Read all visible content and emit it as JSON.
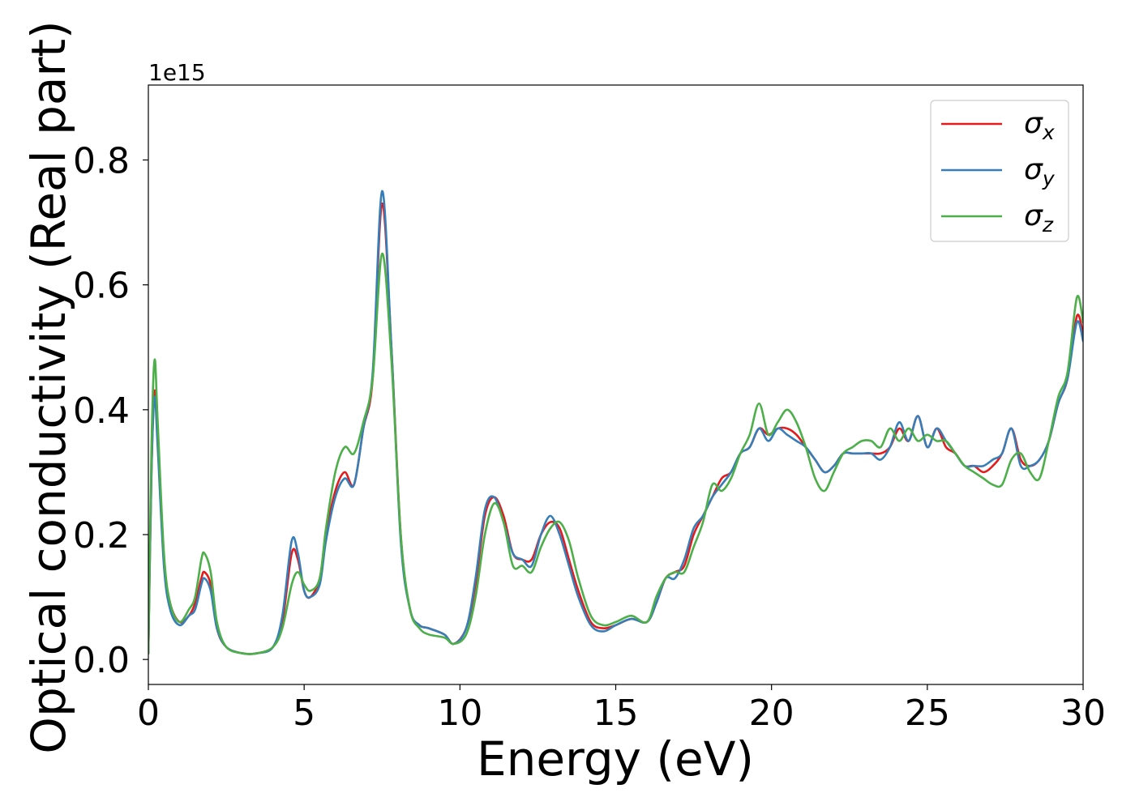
{
  "chart_data": {
    "type": "line",
    "title": "",
    "xlabel": "Energy (eV)",
    "ylabel": "Optical conductivity (Real part)",
    "y_offset_text": "1e15",
    "xlim": [
      0,
      30
    ],
    "ylim": [
      -0.04,
      0.92
    ],
    "xticks": [
      0,
      5,
      10,
      15,
      20,
      25,
      30
    ],
    "xtick_labels": [
      "0",
      "5",
      "10",
      "15",
      "20",
      "25",
      "30"
    ],
    "yticks": [
      0.0,
      0.2,
      0.4,
      0.6,
      0.8
    ],
    "ytick_labels": [
      "0.0",
      "0.2",
      "0.4",
      "0.6",
      "0.8"
    ],
    "grid": false,
    "legend_position": "top-right",
    "series": [
      {
        "name": "σx",
        "symbol": "σ",
        "subscript": "x",
        "color": "#e41a1c",
        "x": [
          0.0,
          0.1,
          0.2,
          0.3,
          0.5,
          0.7,
          1.0,
          1.3,
          1.5,
          1.7,
          1.8,
          2.0,
          2.2,
          2.5,
          3.0,
          3.5,
          4.0,
          4.3,
          4.6,
          4.8,
          5.0,
          5.2,
          5.5,
          5.7,
          6.0,
          6.3,
          6.6,
          6.9,
          7.2,
          7.5,
          7.8,
          8.1,
          8.4,
          8.7,
          9.0,
          9.5,
          9.8,
          10.2,
          10.5,
          10.8,
          11.1,
          11.4,
          11.7,
          12.0,
          12.3,
          12.6,
          12.9,
          13.2,
          13.5,
          13.8,
          14.2,
          14.6,
          15.0,
          15.5,
          16.0,
          16.3,
          16.6,
          16.9,
          17.2,
          17.5,
          17.8,
          18.1,
          18.4,
          18.7,
          19.0,
          19.3,
          19.6,
          19.9,
          20.2,
          20.5,
          20.8,
          21.1,
          21.4,
          21.7,
          22.0,
          22.3,
          22.6,
          22.9,
          23.2,
          23.5,
          23.8,
          24.1,
          24.4,
          24.7,
          25.0,
          25.3,
          25.6,
          25.9,
          26.2,
          26.5,
          26.8,
          27.1,
          27.4,
          27.7,
          28.0,
          28.3,
          28.6,
          28.9,
          29.2,
          29.5,
          29.8,
          30.0
        ],
        "y": [
          0.01,
          0.3,
          0.43,
          0.35,
          0.16,
          0.09,
          0.06,
          0.07,
          0.09,
          0.13,
          0.14,
          0.12,
          0.05,
          0.02,
          0.01,
          0.01,
          0.02,
          0.06,
          0.17,
          0.16,
          0.11,
          0.1,
          0.13,
          0.2,
          0.27,
          0.3,
          0.28,
          0.37,
          0.45,
          0.73,
          0.5,
          0.2,
          0.08,
          0.055,
          0.05,
          0.04,
          0.025,
          0.05,
          0.12,
          0.23,
          0.26,
          0.23,
          0.17,
          0.16,
          0.16,
          0.2,
          0.22,
          0.21,
          0.16,
          0.11,
          0.06,
          0.05,
          0.055,
          0.065,
          0.06,
          0.09,
          0.13,
          0.14,
          0.15,
          0.2,
          0.23,
          0.26,
          0.29,
          0.3,
          0.33,
          0.34,
          0.37,
          0.36,
          0.37,
          0.37,
          0.36,
          0.34,
          0.32,
          0.3,
          0.31,
          0.33,
          0.33,
          0.33,
          0.33,
          0.33,
          0.34,
          0.37,
          0.35,
          0.39,
          0.34,
          0.37,
          0.34,
          0.33,
          0.31,
          0.31,
          0.3,
          0.31,
          0.33,
          0.37,
          0.32,
          0.31,
          0.32,
          0.35,
          0.41,
          0.45,
          0.55,
          0.52
        ]
      },
      {
        "name": "σy",
        "symbol": "σ",
        "subscript": "y",
        "color": "#377eb8",
        "x": [
          0.0,
          0.1,
          0.2,
          0.3,
          0.5,
          0.7,
          1.0,
          1.3,
          1.5,
          1.7,
          1.8,
          2.0,
          2.2,
          2.5,
          3.0,
          3.5,
          4.0,
          4.3,
          4.6,
          4.8,
          5.0,
          5.2,
          5.5,
          5.7,
          6.0,
          6.3,
          6.6,
          6.9,
          7.2,
          7.5,
          7.8,
          8.1,
          8.4,
          8.7,
          9.0,
          9.5,
          9.8,
          10.2,
          10.5,
          10.8,
          11.1,
          11.4,
          11.7,
          12.0,
          12.3,
          12.6,
          12.9,
          13.2,
          13.5,
          13.8,
          14.2,
          14.6,
          15.0,
          15.5,
          16.0,
          16.3,
          16.6,
          16.9,
          17.2,
          17.5,
          17.8,
          18.1,
          18.4,
          18.7,
          19.0,
          19.3,
          19.6,
          19.9,
          20.2,
          20.5,
          20.8,
          21.1,
          21.4,
          21.7,
          22.0,
          22.3,
          22.6,
          22.9,
          23.2,
          23.5,
          23.8,
          24.1,
          24.4,
          24.7,
          25.0,
          25.3,
          25.6,
          25.9,
          26.2,
          26.5,
          26.8,
          27.1,
          27.4,
          27.7,
          28.0,
          28.3,
          28.6,
          28.9,
          29.2,
          29.5,
          29.8,
          30.0
        ],
        "y": [
          0.01,
          0.3,
          0.42,
          0.34,
          0.15,
          0.08,
          0.055,
          0.07,
          0.08,
          0.12,
          0.13,
          0.11,
          0.05,
          0.02,
          0.01,
          0.01,
          0.02,
          0.07,
          0.19,
          0.17,
          0.11,
          0.1,
          0.12,
          0.19,
          0.26,
          0.29,
          0.28,
          0.37,
          0.46,
          0.75,
          0.5,
          0.19,
          0.08,
          0.055,
          0.05,
          0.04,
          0.025,
          0.05,
          0.13,
          0.24,
          0.26,
          0.22,
          0.17,
          0.16,
          0.15,
          0.2,
          0.23,
          0.2,
          0.15,
          0.1,
          0.055,
          0.045,
          0.055,
          0.065,
          0.06,
          0.09,
          0.13,
          0.13,
          0.16,
          0.21,
          0.23,
          0.26,
          0.28,
          0.3,
          0.33,
          0.34,
          0.37,
          0.35,
          0.37,
          0.36,
          0.35,
          0.34,
          0.32,
          0.3,
          0.31,
          0.33,
          0.33,
          0.33,
          0.33,
          0.32,
          0.34,
          0.38,
          0.35,
          0.39,
          0.34,
          0.37,
          0.35,
          0.33,
          0.31,
          0.31,
          0.31,
          0.32,
          0.33,
          0.37,
          0.31,
          0.31,
          0.32,
          0.35,
          0.41,
          0.45,
          0.54,
          0.51
        ]
      },
      {
        "name": "σz",
        "symbol": "σ",
        "subscript": "z",
        "color": "#4daf4a",
        "x": [
          0.0,
          0.1,
          0.2,
          0.3,
          0.5,
          0.7,
          1.0,
          1.3,
          1.5,
          1.7,
          1.8,
          2.0,
          2.2,
          2.5,
          3.0,
          3.5,
          4.0,
          4.3,
          4.6,
          4.8,
          5.0,
          5.2,
          5.5,
          5.7,
          6.0,
          6.3,
          6.6,
          6.9,
          7.2,
          7.5,
          7.8,
          8.1,
          8.4,
          8.7,
          9.0,
          9.5,
          9.8,
          10.2,
          10.5,
          10.8,
          11.1,
          11.4,
          11.7,
          12.0,
          12.3,
          12.6,
          12.9,
          13.2,
          13.5,
          13.8,
          14.2,
          14.6,
          15.0,
          15.5,
          16.0,
          16.3,
          16.6,
          16.9,
          17.2,
          17.5,
          17.8,
          18.1,
          18.4,
          18.7,
          19.0,
          19.3,
          19.6,
          19.9,
          20.2,
          20.5,
          20.8,
          21.1,
          21.4,
          21.7,
          22.0,
          22.3,
          22.6,
          22.9,
          23.2,
          23.5,
          23.8,
          24.1,
          24.4,
          24.7,
          25.0,
          25.3,
          25.6,
          25.9,
          26.2,
          26.5,
          26.8,
          27.1,
          27.4,
          27.7,
          28.0,
          28.3,
          28.6,
          28.9,
          29.2,
          29.5,
          29.8,
          30.0
        ],
        "y": [
          0.01,
          0.34,
          0.48,
          0.38,
          0.17,
          0.09,
          0.06,
          0.08,
          0.1,
          0.16,
          0.17,
          0.14,
          0.06,
          0.02,
          0.01,
          0.01,
          0.02,
          0.05,
          0.12,
          0.14,
          0.12,
          0.11,
          0.13,
          0.21,
          0.3,
          0.34,
          0.33,
          0.38,
          0.45,
          0.65,
          0.48,
          0.2,
          0.08,
          0.05,
          0.04,
          0.035,
          0.025,
          0.04,
          0.1,
          0.2,
          0.25,
          0.22,
          0.15,
          0.15,
          0.14,
          0.18,
          0.21,
          0.22,
          0.19,
          0.13,
          0.07,
          0.055,
          0.06,
          0.07,
          0.06,
          0.1,
          0.13,
          0.14,
          0.14,
          0.18,
          0.22,
          0.28,
          0.27,
          0.29,
          0.33,
          0.36,
          0.41,
          0.36,
          0.38,
          0.4,
          0.38,
          0.34,
          0.29,
          0.27,
          0.3,
          0.33,
          0.34,
          0.35,
          0.35,
          0.34,
          0.37,
          0.35,
          0.37,
          0.35,
          0.36,
          0.35,
          0.35,
          0.33,
          0.31,
          0.3,
          0.29,
          0.28,
          0.28,
          0.32,
          0.33,
          0.3,
          0.29,
          0.35,
          0.42,
          0.46,
          0.58,
          0.54
        ]
      }
    ]
  }
}
